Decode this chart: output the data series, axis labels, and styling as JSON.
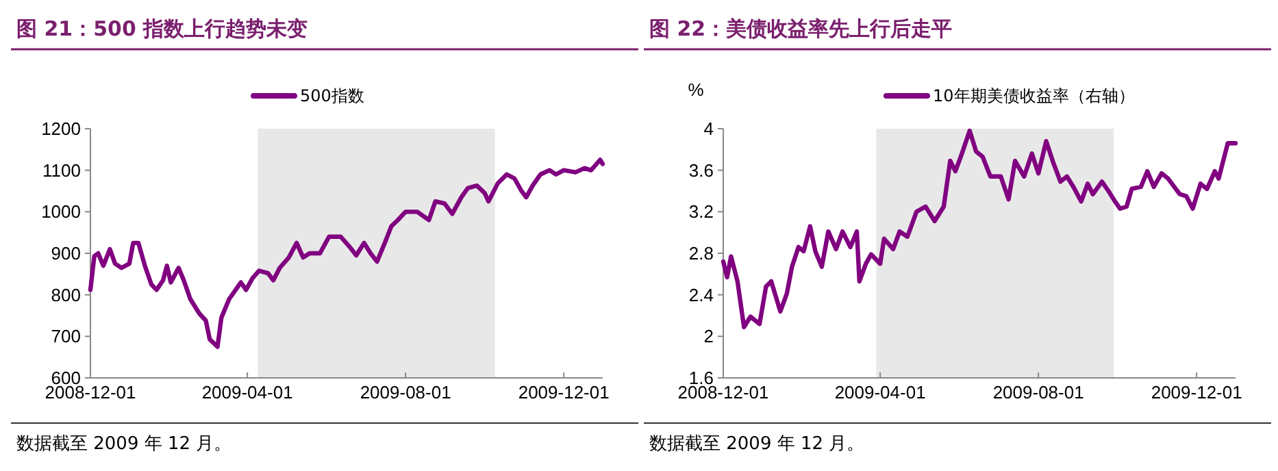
{
  "chart_data": [
    {
      "type": "line",
      "title": "图 21：500 指数上行趋势未变",
      "legend": "top",
      "grid": false,
      "xlim": [
        "2008-12-01",
        "2009-12-31"
      ],
      "xticks": [
        "2008-12-01",
        "2009-04-01",
        "2009-08-01",
        "2009-12-01"
      ],
      "ylim": [
        600,
        1200
      ],
      "yticks": [
        600,
        700,
        800,
        900,
        1000,
        1100,
        1200
      ],
      "bands": [
        {
          "axis": "x",
          "from": "2009-04-09",
          "to": "2009-10-09",
          "color": "#e8e8e8"
        }
      ],
      "annotations": [
        "数据截至 2009 年 12 月。"
      ],
      "series": [
        {
          "name": "500指数",
          "color": "#800080",
          "x": [
            "2008-12-01",
            "2008-12-04",
            "2008-12-07",
            "2008-12-11",
            "2008-12-16",
            "2008-12-20",
            "2008-12-25",
            "2008-12-31",
            "2009-01-03",
            "2009-01-07",
            "2009-01-12",
            "2009-01-17",
            "2009-01-21",
            "2009-01-26",
            "2009-01-29",
            "2009-02-01",
            "2009-02-07",
            "2009-02-11",
            "2009-02-16",
            "2009-02-23",
            "2009-02-28",
            "2009-03-03",
            "2009-03-09",
            "2009-03-12",
            "2009-03-18",
            "2009-03-23",
            "2009-03-27",
            "2009-03-31",
            "2009-04-05",
            "2009-04-10",
            "2009-04-17",
            "2009-04-21",
            "2009-04-26",
            "2009-05-03",
            "2009-05-09",
            "2009-05-14",
            "2009-05-19",
            "2009-05-27",
            "2009-06-03",
            "2009-06-12",
            "2009-06-19",
            "2009-06-24",
            "2009-06-30",
            "2009-07-05",
            "2009-07-10",
            "2009-07-16",
            "2009-07-21",
            "2009-07-26",
            "2009-08-01",
            "2009-08-10",
            "2009-08-19",
            "2009-08-24",
            "2009-08-31",
            "2009-09-06",
            "2009-09-13",
            "2009-09-18",
            "2009-09-25",
            "2009-10-01",
            "2009-10-04",
            "2009-10-11",
            "2009-10-18",
            "2009-10-24",
            "2009-10-29",
            "2009-11-02",
            "2009-11-07",
            "2009-11-13",
            "2009-11-20",
            "2009-11-25",
            "2009-12-01",
            "2009-12-10",
            "2009-12-17",
            "2009-12-22",
            "2009-12-29",
            "2009-12-31"
          ],
          "values": [
            812,
            893,
            900,
            870,
            910,
            875,
            865,
            875,
            925,
            925,
            870,
            825,
            812,
            835,
            870,
            830,
            865,
            835,
            790,
            755,
            738,
            693,
            675,
            745,
            790,
            812,
            830,
            812,
            840,
            858,
            852,
            835,
            865,
            890,
            925,
            890,
            900,
            900,
            940,
            940,
            915,
            895,
            925,
            900,
            880,
            925,
            965,
            980,
            1000,
            1000,
            980,
            1025,
            1020,
            995,
            1035,
            1057,
            1063,
            1045,
            1025,
            1068,
            1090,
            1080,
            1052,
            1035,
            1063,
            1090,
            1100,
            1090,
            1100,
            1095,
            1105,
            1100,
            1125,
            1115
          ]
        }
      ]
    },
    {
      "type": "line",
      "title": "图 22：美债收益率先上行后走平",
      "legend": "top",
      "grid": false,
      "ylabel": "%",
      "xlim": [
        "2008-12-01",
        "2009-12-31"
      ],
      "xticks": [
        "2008-12-01",
        "2009-04-01",
        "2009-08-01",
        "2009-12-01"
      ],
      "ylim": [
        1.6,
        4
      ],
      "yticks": [
        1.6,
        2,
        2.4,
        2.8,
        3.2,
        3.6,
        4
      ],
      "bands": [
        {
          "axis": "x",
          "from": "2009-03-29",
          "to": "2009-09-28",
          "color": "#e8e8e8"
        }
      ],
      "annotations": [
        "数据截至 2009 年 12 月。"
      ],
      "series": [
        {
          "name": "10年期美债收益率（右轴）",
          "color": "#800080",
          "x": [
            "2008-12-01",
            "2008-12-04",
            "2008-12-07",
            "2008-12-12",
            "2008-12-17",
            "2008-12-22",
            "2008-12-29",
            "2009-01-03",
            "2009-01-07",
            "2009-01-14",
            "2009-01-19",
            "2009-01-23",
            "2009-01-28",
            "2009-02-01",
            "2009-02-06",
            "2009-02-10",
            "2009-02-15",
            "2009-02-20",
            "2009-02-26",
            "2009-03-03",
            "2009-03-09",
            "2009-03-14",
            "2009-03-16",
            "2009-03-21",
            "2009-03-25",
            "2009-04-01",
            "2009-04-04",
            "2009-04-11",
            "2009-04-16",
            "2009-04-22",
            "2009-04-29",
            "2009-05-06",
            "2009-05-13",
            "2009-05-20",
            "2009-05-25",
            "2009-05-29",
            "2009-06-03",
            "2009-06-09",
            "2009-06-14",
            "2009-06-19",
            "2009-06-25",
            "2009-07-03",
            "2009-07-09",
            "2009-07-14",
            "2009-07-21",
            "2009-07-27",
            "2009-08-01",
            "2009-08-07",
            "2009-08-12",
            "2009-08-18",
            "2009-08-23",
            "2009-08-28",
            "2009-09-03",
            "2009-09-08",
            "2009-09-12",
            "2009-09-19",
            "2009-09-24",
            "2009-09-29",
            "2009-10-03",
            "2009-10-08",
            "2009-10-12",
            "2009-10-19",
            "2009-10-24",
            "2009-10-29",
            "2009-11-04",
            "2009-11-09",
            "2009-11-18",
            "2009-11-23",
            "2009-11-28",
            "2009-12-04",
            "2009-12-09",
            "2009-12-15",
            "2009-12-18",
            "2009-12-25",
            "2009-12-31"
          ],
          "values": [
            2.72,
            2.57,
            2.77,
            2.53,
            2.09,
            2.19,
            2.12,
            2.48,
            2.53,
            2.24,
            2.41,
            2.67,
            2.86,
            2.82,
            3.06,
            2.82,
            2.67,
            3.01,
            2.84,
            3.01,
            2.86,
            3.01,
            2.53,
            2.7,
            2.79,
            2.7,
            2.94,
            2.84,
            3.01,
            2.96,
            3.2,
            3.25,
            3.11,
            3.25,
            3.69,
            3.59,
            3.76,
            3.98,
            3.78,
            3.73,
            3.54,
            3.54,
            3.32,
            3.69,
            3.54,
            3.76,
            3.57,
            3.88,
            3.69,
            3.49,
            3.54,
            3.44,
            3.3,
            3.47,
            3.37,
            3.49,
            3.4,
            3.3,
            3.23,
            3.25,
            3.42,
            3.44,
            3.59,
            3.44,
            3.57,
            3.52,
            3.37,
            3.35,
            3.23,
            3.47,
            3.42,
            3.59,
            3.52,
            3.86,
            3.86
          ]
        }
      ]
    }
  ]
}
